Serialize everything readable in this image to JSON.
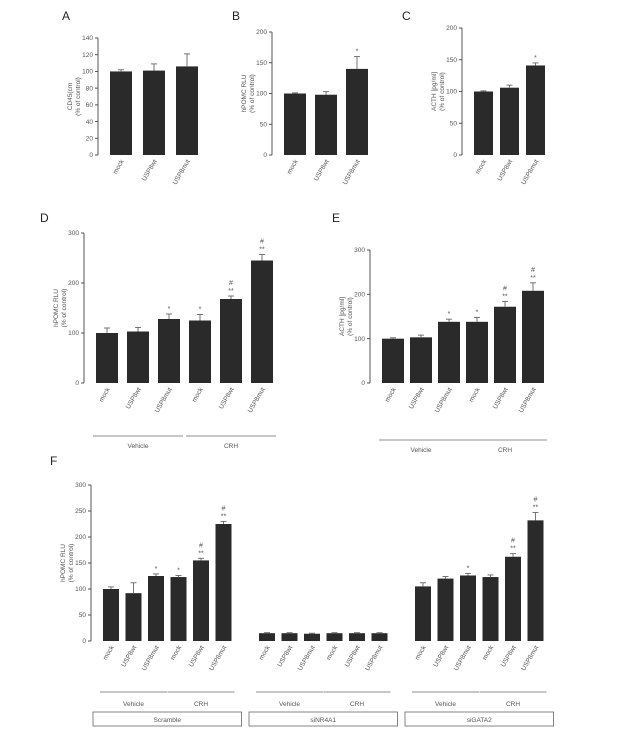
{
  "chart_data": [
    {
      "id": "A",
      "type": "bar",
      "panel_label": "A",
      "ylabel": [
        "CD45(cm",
        "(% of control)"
      ],
      "ylim": [
        0,
        140
      ],
      "yticks": [
        0,
        20,
        40,
        60,
        80,
        100,
        120,
        140
      ],
      "categories": [
        "mock",
        "USP8wt",
        "USP8mut"
      ],
      "values": [
        100,
        101,
        106
      ],
      "errors": [
        2,
        8,
        15
      ],
      "marks": [
        "",
        "",
        ""
      ],
      "groups": [],
      "boxes": []
    },
    {
      "id": "B",
      "type": "bar",
      "panel_label": "B",
      "ylabel": [
        "hPOMC RLU",
        "(% of control)"
      ],
      "ylim": [
        0,
        200
      ],
      "yticks": [
        0,
        50,
        100,
        150,
        200
      ],
      "categories": [
        "mock",
        "USP8wt",
        "USP8mut"
      ],
      "values": [
        100,
        98,
        140
      ],
      "errors": [
        1,
        5,
        20
      ],
      "marks": [
        "",
        "",
        "*"
      ],
      "groups": [],
      "boxes": []
    },
    {
      "id": "C",
      "type": "bar",
      "panel_label": "C",
      "ylabel": [
        "ACTH [pg/ml]",
        "(% of control)"
      ],
      "ylim": [
        0,
        200
      ],
      "yticks": [
        0,
        50,
        100,
        150,
        200
      ],
      "categories": [
        "mock",
        "USP8wt",
        "USP8mut"
      ],
      "values": [
        100,
        106,
        141
      ],
      "errors": [
        1,
        4,
        4
      ],
      "marks": [
        "",
        "",
        "*"
      ],
      "groups": [],
      "boxes": []
    },
    {
      "id": "D",
      "type": "bar",
      "panel_label": "D",
      "ylabel": [
        "hPOMC RLU",
        "(% of control)"
      ],
      "ylim": [
        0,
        300
      ],
      "yticks": [
        0,
        100,
        200,
        300
      ],
      "categories": [
        "mock",
        "USP8wt",
        "USP8mut",
        "mock",
        "USP8wt",
        "USP8mut"
      ],
      "values": [
        100,
        103,
        128,
        125,
        168,
        245
      ],
      "errors": [
        10,
        8,
        10,
        12,
        6,
        12
      ],
      "marks": [
        "",
        "",
        "*",
        "*",
        "#\n**",
        "#\n**"
      ],
      "groups": [
        {
          "label": "Vehicle",
          "from": 0,
          "to": 2
        },
        {
          "label": "CRH",
          "from": 3,
          "to": 5
        }
      ],
      "boxes": []
    },
    {
      "id": "E",
      "type": "bar",
      "panel_label": "E",
      "ylabel": [
        "ACTH [pg/ml]",
        "(% of control)"
      ],
      "ylim": [
        0,
        300
      ],
      "yticks": [
        0,
        100,
        200,
        300
      ],
      "categories": [
        "mock",
        "USP8wt",
        "USP8mut",
        "mock",
        "USP8wt",
        "USP8mut"
      ],
      "values": [
        100,
        103,
        138,
        138,
        172,
        208
      ],
      "errors": [
        2,
        5,
        6,
        10,
        12,
        18
      ],
      "marks": [
        "",
        "",
        "*",
        "*",
        "#\n**",
        "#\n**"
      ],
      "groups": [
        {
          "label": "Vehicle",
          "from": 0,
          "to": 2
        },
        {
          "label": "CRH",
          "from": 3,
          "to": 5
        }
      ],
      "boxes": []
    },
    {
      "id": "F",
      "type": "bar",
      "panel_label": "F",
      "ylabel": [
        "hPOMC RLU",
        "(% of control)"
      ],
      "ylim": [
        0,
        300
      ],
      "yticks": [
        0,
        50,
        100,
        150,
        200,
        250,
        300
      ],
      "categories": [
        "mock",
        "USP8wt",
        "USP8mut",
        "mock",
        "USP8wt",
        "USP8mut",
        "mock",
        "USP8wt",
        "USP8mut",
        "mock",
        "USP8wt",
        "USP8mut",
        "mock",
        "USP8wt",
        "USP8mut",
        "mock",
        "USP8wt",
        "USP8mut"
      ],
      "values": [
        100,
        92,
        125,
        123,
        155,
        225,
        15,
        15,
        14,
        15,
        15,
        15,
        105,
        120,
        126,
        123,
        162,
        232
      ],
      "errors": [
        4,
        20,
        4,
        3,
        4,
        5,
        1,
        1,
        1,
        1,
        1,
        1,
        7,
        4,
        4,
        4,
        6,
        15
      ],
      "marks": [
        "",
        "",
        "*",
        "*",
        "#\n**",
        "#\n**",
        "",
        "",
        "",
        "",
        "",
        "",
        "",
        "",
        "*",
        "",
        "#\n**",
        "#\n**"
      ],
      "groups": [
        {
          "label": "Vehicle",
          "from": 0,
          "to": 2
        },
        {
          "label": "CRH",
          "from": 3,
          "to": 5
        },
        {
          "label": "Vehicle",
          "from": 6,
          "to": 8
        },
        {
          "label": "CRH",
          "from": 9,
          "to": 11
        },
        {
          "label": "Vehicle",
          "from": 12,
          "to": 14
        },
        {
          "label": "CRH",
          "from": 15,
          "to": 17
        }
      ],
      "boxes": [
        {
          "label": "Scramble",
          "from": 0,
          "to": 5
        },
        {
          "label": "siNR4A1",
          "from": 6,
          "to": 11
        },
        {
          "label": "siGATA2",
          "from": 12,
          "to": 17
        }
      ]
    }
  ]
}
